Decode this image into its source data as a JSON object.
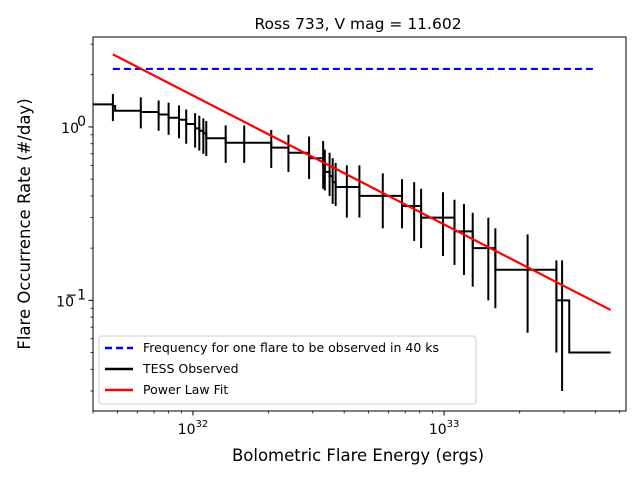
{
  "chart_data": {
    "type": "line",
    "title": "Ross 733, V mag = 11.602",
    "xlabel": "Bolometric Flare Energy (ergs)",
    "ylabel": "Flare Occurrence Rate (#/day)",
    "x_scale": "log",
    "y_scale": "log",
    "xlim": [
      4e+31,
      5.3e+33
    ],
    "ylim": [
      0.023,
      3.3
    ],
    "x_ticks": [
      {
        "value": 1e+32,
        "base": "10",
        "exp": "32"
      },
      {
        "value": 1e+33,
        "base": "10",
        "exp": "33"
      }
    ],
    "y_ticks": [
      {
        "value": 1.0,
        "label": "10",
        "exp": "0"
      },
      {
        "value": 0.1,
        "label": "10",
        "exp": "−1"
      }
    ],
    "grid": false,
    "legend_placement": "lower-left",
    "series": [
      {
        "name": "Frequency for one flare to be observed in 40 ks",
        "color": "#0000ff",
        "style": "dashed",
        "x": [
          4.8e+31,
          4.05e+33
        ],
        "y": [
          2.16,
          2.16
        ]
      },
      {
        "name": "TESS Observed",
        "color": "#000000",
        "style": "steps",
        "points": [
          {
            "x": 4e+31,
            "y": 1.35,
            "yerr_lo": 1.35,
            "yerr_hi": 1.35
          },
          {
            "x": 4.8e+31,
            "y": 1.32,
            "yerr_lo": 1.08,
            "yerr_hi": 1.55
          },
          {
            "x": 4.9e+31,
            "y": 1.24,
            "yerr_lo": 1.24,
            "yerr_hi": 1.24
          },
          {
            "x": 6.2e+31,
            "y": 1.22,
            "yerr_lo": 0.98,
            "yerr_hi": 1.48
          },
          {
            "x": 7.3e+31,
            "y": 1.18,
            "yerr_lo": 0.95,
            "yerr_hi": 1.42
          },
          {
            "x": 8e+31,
            "y": 1.13,
            "yerr_lo": 0.9,
            "yerr_hi": 1.38
          },
          {
            "x": 8.8e+31,
            "y": 1.1,
            "yerr_lo": 0.86,
            "yerr_hi": 1.33
          },
          {
            "x": 9.4e+31,
            "y": 1.04,
            "yerr_lo": 0.8,
            "yerr_hi": 1.26
          },
          {
            "x": 1.02e+32,
            "y": 0.98,
            "yerr_lo": 0.76,
            "yerr_hi": 1.2
          },
          {
            "x": 1.06e+32,
            "y": 0.95,
            "yerr_lo": 0.73,
            "yerr_hi": 1.16
          },
          {
            "x": 1.1e+32,
            "y": 0.92,
            "yerr_lo": 0.7,
            "yerr_hi": 1.12
          },
          {
            "x": 1.13e+32,
            "y": 0.86,
            "yerr_lo": 0.68,
            "yerr_hi": 1.08
          },
          {
            "x": 1.35e+32,
            "y": 0.81,
            "yerr_lo": 0.62,
            "yerr_hi": 1.02
          },
          {
            "x": 1.6e+32,
            "y": 0.81,
            "yerr_lo": 0.62,
            "yerr_hi": 1.02
          },
          {
            "x": 2.05e+32,
            "y": 0.76,
            "yerr_lo": 0.58,
            "yerr_hi": 0.96
          },
          {
            "x": 2.4e+32,
            "y": 0.71,
            "yerr_lo": 0.55,
            "yerr_hi": 0.9
          },
          {
            "x": 2.9e+32,
            "y": 0.66,
            "yerr_lo": 0.5,
            "yerr_hi": 0.88
          },
          {
            "x": 3.3e+32,
            "y": 0.6,
            "yerr_lo": 0.44,
            "yerr_hi": 0.83
          },
          {
            "x": 3.35e+32,
            "y": 0.55,
            "yerr_lo": 0.43,
            "yerr_hi": 0.74
          },
          {
            "x": 3.5e+32,
            "y": 0.52,
            "yerr_lo": 0.4,
            "yerr_hi": 0.71
          },
          {
            "x": 3.6e+32,
            "y": 0.48,
            "yerr_lo": 0.36,
            "yerr_hi": 0.66
          },
          {
            "x": 3.7e+32,
            "y": 0.45,
            "yerr_lo": 0.35,
            "yerr_hi": 0.62
          },
          {
            "x": 4.1e+32,
            "y": 0.45,
            "yerr_lo": 0.3,
            "yerr_hi": 0.6
          },
          {
            "x": 4.6e+32,
            "y": 0.4,
            "yerr_lo": 0.3,
            "yerr_hi": 0.6
          },
          {
            "x": 5.7e+32,
            "y": 0.4,
            "yerr_lo": 0.26,
            "yerr_hi": 0.54
          },
          {
            "x": 6.8e+32,
            "y": 0.35,
            "yerr_lo": 0.26,
            "yerr_hi": 0.5
          },
          {
            "x": 7.6e+32,
            "y": 0.35,
            "yerr_lo": 0.22,
            "yerr_hi": 0.48
          },
          {
            "x": 8.1e+32,
            "y": 0.3,
            "yerr_lo": 0.2,
            "yerr_hi": 0.44
          },
          {
            "x": 9.9e+32,
            "y": 0.3,
            "yerr_lo": 0.18,
            "yerr_hi": 0.42
          },
          {
            "x": 1.1e+33,
            "y": 0.25,
            "yerr_lo": 0.16,
            "yerr_hi": 0.38
          },
          {
            "x": 1.2e+33,
            "y": 0.25,
            "yerr_lo": 0.14,
            "yerr_hi": 0.36
          },
          {
            "x": 1.3e+33,
            "y": 0.2,
            "yerr_lo": 0.12,
            "yerr_hi": 0.32
          },
          {
            "x": 1.5e+33,
            "y": 0.2,
            "yerr_lo": 0.1,
            "yerr_hi": 0.3
          },
          {
            "x": 1.6e+33,
            "y": 0.15,
            "yerr_lo": 0.09,
            "yerr_hi": 0.26
          },
          {
            "x": 2.15e+33,
            "y": 0.15,
            "yerr_lo": 0.065,
            "yerr_hi": 0.24
          },
          {
            "x": 2.8e+33,
            "y": 0.1,
            "yerr_lo": 0.05,
            "yerr_hi": 0.17
          },
          {
            "x": 2.95e+33,
            "y": 0.1,
            "yerr_lo": 0.03,
            "yerr_hi": 0.17
          },
          {
            "x": 3.15e+33,
            "y": 0.05,
            "yerr_lo": 0.05,
            "yerr_hi": 0.05
          }
        ],
        "x_end": 4.6e+33
      },
      {
        "name": "Power Law Fit",
        "color": "#ff0000",
        "style": "solid",
        "x": [
          4.8e+31,
          4.6e+33
        ],
        "y": [
          2.62,
          0.088
        ]
      }
    ]
  }
}
